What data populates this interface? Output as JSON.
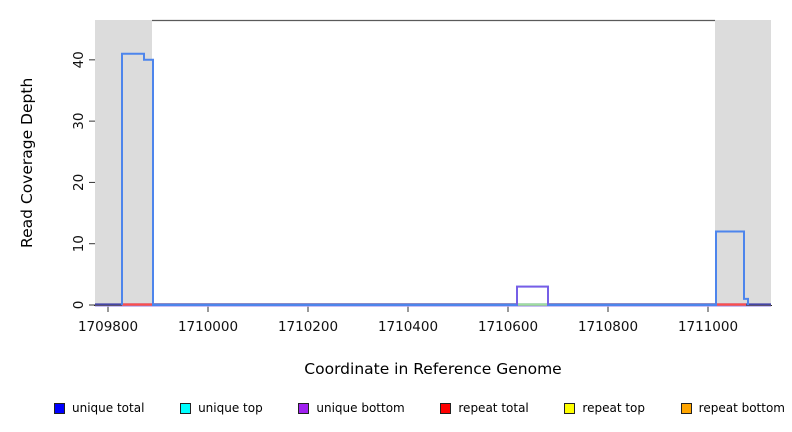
{
  "chart_data": {
    "type": "line",
    "title": "",
    "xlabel": "Coordinate in Reference Genome",
    "ylabel": "Read Coverage Depth",
    "xlim": [
      1709774,
      1711126
    ],
    "ylim": [
      0,
      46.5
    ],
    "xticks": [
      1709800,
      1710000,
      1710200,
      1710400,
      1710600,
      1710800,
      1711000
    ],
    "yticks": [
      0,
      10,
      20,
      30,
      40
    ],
    "grid": false,
    "legend_position": "bottom",
    "shaded_regions": [
      {
        "x0": 1709774,
        "x1": 1709888,
        "color": "#dcdcdc"
      },
      {
        "x0": 1711014,
        "x1": 1711126,
        "color": "#dcdcdc"
      }
    ],
    "series": [
      {
        "name": "unique total",
        "color": "#0000ff",
        "draw_color": "#4d85ec",
        "width": 2,
        "points": [
          [
            1709774,
            0
          ],
          [
            1709828,
            0
          ],
          [
            1709828,
            41
          ],
          [
            1709872,
            41
          ],
          [
            1709872,
            40
          ],
          [
            1709890,
            40
          ],
          [
            1709890,
            0
          ],
          [
            1710618,
            0
          ],
          [
            1710618,
            3
          ],
          [
            1710680,
            3
          ],
          [
            1710680,
            0
          ],
          [
            1711016,
            0
          ],
          [
            1711016,
            12
          ],
          [
            1711072,
            12
          ],
          [
            1711072,
            1
          ],
          [
            1711080,
            1
          ],
          [
            1711080,
            0
          ],
          [
            1711126,
            0
          ]
        ]
      },
      {
        "name": "unique top",
        "color": "#00ffff",
        "draw_color": "#00e0e0",
        "width": 1.5,
        "points": [
          [
            1709774,
            0
          ],
          [
            1711126,
            0
          ]
        ]
      },
      {
        "name": "unique bottom",
        "color": "#a020f0",
        "draw_color": "#7b5be6",
        "width": 1.8,
        "points": [
          [
            1709774,
            0
          ],
          [
            1710618,
            0
          ],
          [
            1710618,
            3
          ],
          [
            1710680,
            3
          ],
          [
            1710680,
            0
          ],
          [
            1711126,
            0
          ]
        ]
      },
      {
        "name": "repeat total",
        "color": "#ff0000",
        "draw_color": "#ff4d4d",
        "width": 1.5,
        "points": [
          [
            1709774,
            0
          ],
          [
            1711126,
            0
          ]
        ]
      },
      {
        "name": "repeat top",
        "color": "#ffff00",
        "draw_color": "#f0f000",
        "width": 1.5,
        "points": [
          [
            1709774,
            0
          ],
          [
            1711126,
            0
          ]
        ]
      },
      {
        "name": "repeat bottom",
        "color": "#ffa500",
        "draw_color": "#ffa500",
        "width": 1.5,
        "points": [
          [
            1709774,
            0
          ],
          [
            1711126,
            0
          ]
        ]
      }
    ],
    "baseline": {
      "main_color": "#4545a5",
      "fringe_color": "#b7a8f2",
      "accents": [
        {
          "x0": 1709828,
          "x1": 1709890,
          "color": "#ff4d4d"
        },
        {
          "x0": 1710618,
          "x1": 1710680,
          "color": "#9fdf9f"
        },
        {
          "x0": 1711016,
          "x1": 1711076,
          "color": "#ff4d4d"
        }
      ]
    },
    "legend": [
      {
        "label": "unique total",
        "color": "#0000ff"
      },
      {
        "label": "unique top",
        "color": "#00ffff"
      },
      {
        "label": "unique bottom",
        "color": "#a020f0"
      },
      {
        "label": "repeat total",
        "color": "#ff0000"
      },
      {
        "label": "repeat top",
        "color": "#ffff00"
      },
      {
        "label": "repeat bottom",
        "color": "#ffa500"
      }
    ]
  }
}
